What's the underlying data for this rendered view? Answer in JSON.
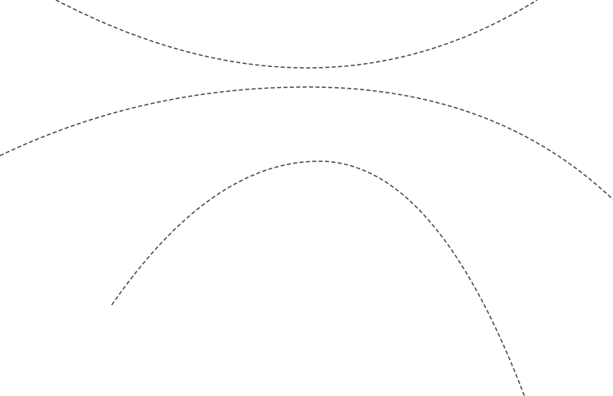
{
  "diagram": {
    "background": "#ffffff",
    "stroke_color": "#444444",
    "line_style": "dashed",
    "curves": [
      {
        "name": "top-arc",
        "shape": "concave-up"
      },
      {
        "name": "middle-arc",
        "shape": "concave-down"
      },
      {
        "name": "lower-arc",
        "shape": "concave-down"
      }
    ]
  }
}
